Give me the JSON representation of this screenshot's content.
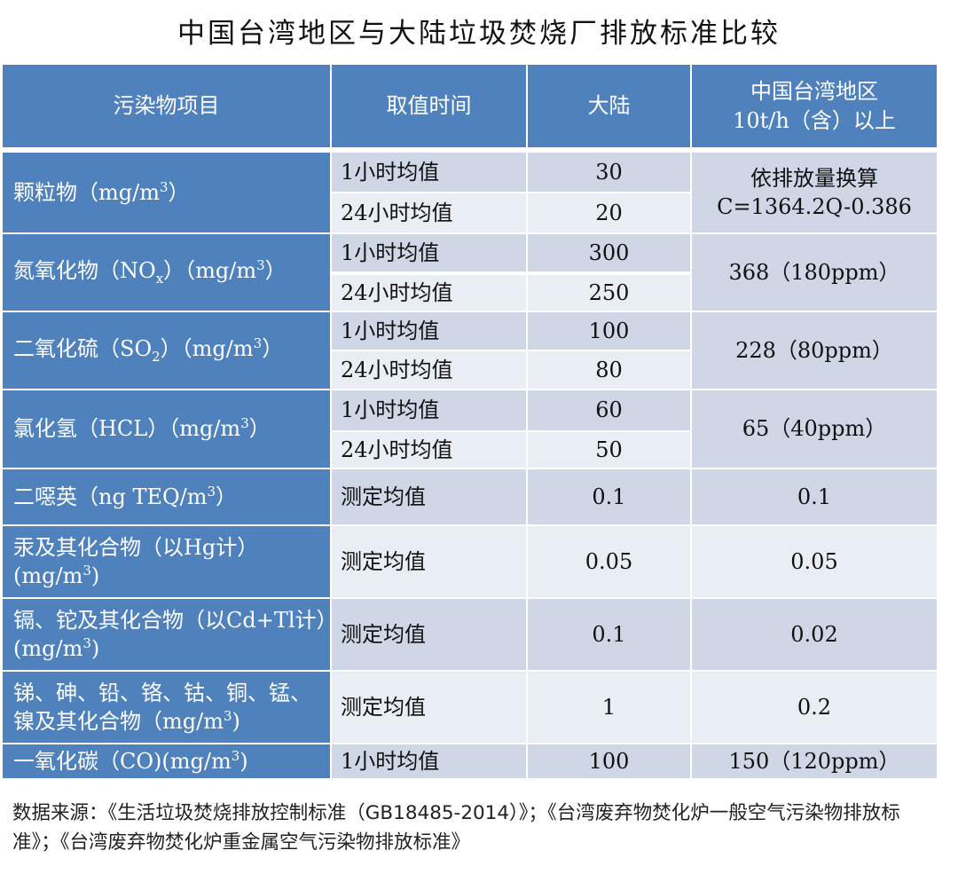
{
  "title": "中国台湾地区与大陆垃圾焚烧厂排放标准比较",
  "colors": {
    "header": "#4f81bd",
    "row_dark": "#cfd6e5",
    "row_light": "#e9edf4"
  },
  "headers": [
    "污染物项目",
    "取值时间",
    "大陆",
    "中国台湾地区",
    "10t/h（含）以上"
  ],
  "rows": [
    {
      "item": "颗粒物（mg/m",
      "sup": "3",
      "tail": "）",
      "t1": "1小时均值",
      "m1": "30",
      "t2": "24小时均值",
      "m2": "20",
      "tw": "依排放量换算",
      "tw2": "C=1364.2Q-0.386"
    },
    {
      "item": "氮氧化物（NO",
      "sub": "x",
      "mid": "）（mg/m",
      "sup": "3",
      "tail": "）",
      "t1": "1小时均值",
      "m1": "300",
      "t2": "24小时均值",
      "m2": "250",
      "tw": "368（180ppm）"
    },
    {
      "item": "二氧化硫（SO",
      "sub": "2",
      "mid": "）（mg/m",
      "sup": "3",
      "tail": "）",
      "t1": "1小时均值",
      "m1": "100",
      "t2": "24小时均值",
      "m2": "80",
      "tw": "228（80ppm）"
    },
    {
      "item": "氯化氢（HCL）（mg/m",
      "sup": "3",
      "tail": "）",
      "t1": "1小时均值",
      "m1": "60",
      "t2": "24小时均值",
      "m2": "50",
      "tw": "65（40ppm）"
    },
    {
      "item": "二噁英（ng TEQ/m",
      "sup": "3",
      "tail": "）",
      "t": "测定均值",
      "m": "0.1",
      "tw": "0.1"
    },
    {
      "item": "汞及其化合物（以Hg计）(mg/m",
      "sup": "3",
      "tail": ")",
      "t": "测定均值",
      "m": "0.05",
      "tw": "0.05"
    },
    {
      "item": "镉、铊及其化合物（以Cd+Tl计）(mg/m",
      "sup": "3",
      "tail": ")",
      "t": "测定均值",
      "m": "0.1",
      "tw": "0.02"
    },
    {
      "item": "锑、砷、铅、铬、钴、铜、锰、镍及其化合物（mg/m",
      "sup": "3",
      "tail": ")",
      "t": "测定均值",
      "m": "1",
      "tw": "0.2"
    },
    {
      "item": "一氧化碳（CO)(mg/m",
      "sup": "3",
      "tail": ")",
      "t": "1小时均值",
      "m": "100",
      "tw": "150（120ppm）"
    }
  ],
  "footer": "数据来源：《生活垃圾焚烧排放控制标准（GB18485-2014）》；《台湾废弃物焚化炉一般空气污染物排放标准》；《台湾废弃物焚化炉重金属空气污染物排放标准》"
}
